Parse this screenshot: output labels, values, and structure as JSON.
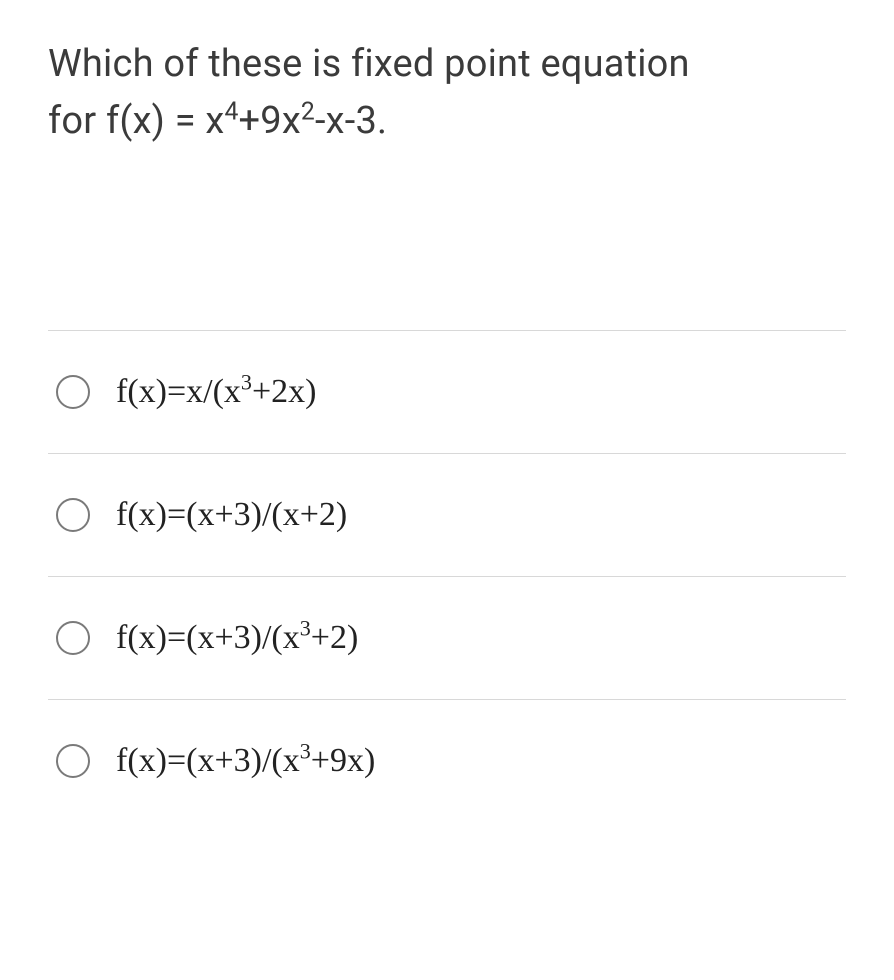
{
  "question": {
    "line1": "Which of these is fixed point equation",
    "line2_prefix": "for f(x) = x",
    "line2_sup1": "4",
    "line2_mid1": "+9x",
    "line2_sup2": "2",
    "line2_suffix": "-x-3."
  },
  "options": [
    {
      "prefix": "f(x)=x/(x",
      "sup1": "3",
      "suffix": "+2x)"
    },
    {
      "prefix": "f(x)=(x+3)/(x+2)",
      "sup1": "",
      "suffix": ""
    },
    {
      "prefix": "f(x)=(x+3)/(x",
      "sup1": "3",
      "suffix": "+2)"
    },
    {
      "prefix": "f(x)=(x+3)/(x",
      "sup1": "3",
      "suffix": "+9x)"
    }
  ],
  "styling": {
    "text_color": "#3b3b3b",
    "option_text_color": "#222222",
    "border_color": "#d8d8d8",
    "radio_border_color": "#7a7a7a",
    "background_color": "#ffffff",
    "question_fontsize": 38,
    "option_fontsize": 34
  }
}
